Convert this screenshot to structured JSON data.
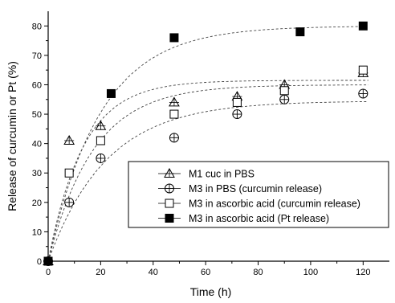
{
  "chart_data": {
    "type": "scatter",
    "title": "",
    "xlabel": "Time (h)",
    "ylabel": "Release of curcumin or Pt (%)",
    "xlim": [
      0,
      130
    ],
    "ylim": [
      0,
      85
    ],
    "xticks": [
      0,
      20,
      40,
      60,
      80,
      100,
      120
    ],
    "yticks": [
      0,
      10,
      20,
      30,
      40,
      50,
      60,
      70,
      80
    ],
    "xtick_labels": [
      "0",
      "20",
      "40",
      "60",
      "80",
      "100",
      "120"
    ],
    "ytick_labels": [
      "0",
      "10",
      "20",
      "30",
      "40",
      "50",
      "60",
      "70",
      "80"
    ],
    "grid": false,
    "legend_position": "center-right",
    "fit_lines": "dashed",
    "series": [
      {
        "name": "M1 cuc in PBS",
        "marker": "triangle-open",
        "x": [
          0,
          8,
          20,
          48,
          72,
          90,
          120
        ],
        "y": [
          0,
          41,
          46,
          54,
          56,
          60,
          64
        ],
        "fit": {
          "max": 61.5,
          "k": 0.075
        }
      },
      {
        "name": "M3 in PBS (curcumin release)",
        "marker": "circle-plus-open",
        "x": [
          0,
          8,
          20,
          48,
          72,
          90,
          120
        ],
        "y": [
          0,
          20,
          35,
          42,
          50,
          55,
          57
        ],
        "fit": {
          "max": 54.5,
          "k": 0.045
        }
      },
      {
        "name": "M3 in ascorbic acid (curcumin release)",
        "marker": "square-open",
        "x": [
          0,
          8,
          20,
          48,
          72,
          90,
          120
        ],
        "y": [
          0,
          30,
          41,
          50,
          54,
          58,
          65
        ],
        "fit": {
          "max": 60,
          "k": 0.058
        }
      },
      {
        "name": "M3 in ascorbic acid (Pt release)",
        "marker": "square-filled",
        "x": [
          0,
          24,
          48,
          96,
          120
        ],
        "y": [
          0,
          57,
          76,
          78,
          80
        ],
        "fit": {
          "max": 80,
          "k": 0.05
        }
      }
    ]
  }
}
